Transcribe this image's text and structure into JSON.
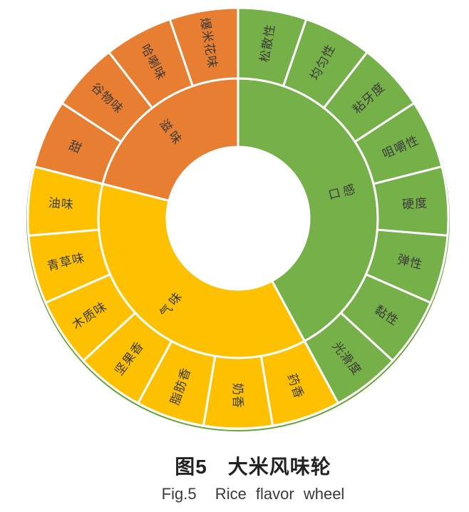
{
  "figure": {
    "caption_zh": "图5　大米风味轮",
    "caption_en": "Fig.5  Rice flavor wheel"
  },
  "chart_data": {
    "type": "sunburst",
    "title": "大米风味轮",
    "title_en": "Rice flavor wheel",
    "legend_position": "none",
    "label_rotation": "radial",
    "equal_angle_leaves": true,
    "leaf_count": 19,
    "start_angle_deg": 0,
    "text_color": "#3b3b3b",
    "background": "#ffffff",
    "rim_color": "#69a13a",
    "categories": [
      {
        "name": "口感",
        "color": "#76b048",
        "children": [
          "松散性",
          "均匀性",
          "粘牙度",
          "咀嚼性",
          "硬度",
          "弹性",
          "黏性",
          "光滑度"
        ]
      },
      {
        "name": "气味",
        "color": "#fec101",
        "children": [
          "药香",
          "奶香",
          "脂肪香",
          "坚果香",
          "木质味",
          "青草味",
          "油味"
        ]
      },
      {
        "name": "滋味",
        "color": "#e87e31",
        "children": [
          "甜",
          "谷物味",
          "哈喇味",
          "爆米花味"
        ]
      }
    ]
  }
}
